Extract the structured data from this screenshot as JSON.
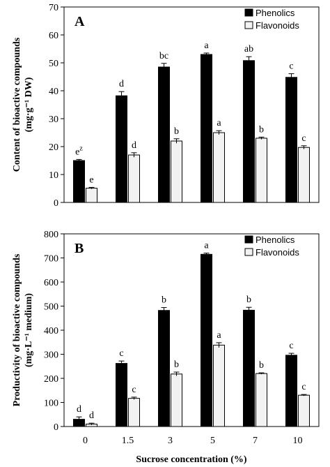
{
  "chart_data": [
    {
      "type": "bar",
      "panel_label": "A",
      "ylabel": "Content of bioactive compounds",
      "ylabel_units": "(mg·g⁻¹ DW)",
      "ylim": [
        0,
        70
      ],
      "yticks": [
        0,
        10,
        20,
        30,
        40,
        50,
        60,
        70
      ],
      "categories": [
        "0",
        "1.5",
        "3",
        "5",
        "7",
        "10"
      ],
      "legend_position": "top-right",
      "series": [
        {
          "name": "Phenolics",
          "color": "#000000",
          "values": [
            15,
            38.2,
            48.5,
            53,
            50.8,
            44.8
          ],
          "errors": [
            0.4,
            1.5,
            1.3,
            0.5,
            1.4,
            1.3
          ],
          "letters": [
            "e",
            "d",
            "bc",
            "a",
            "ab",
            "c"
          ]
        },
        {
          "name": "Flavonoids",
          "color": "#f2f2f2",
          "values": [
            5.1,
            17,
            22,
            25,
            23,
            19.7
          ],
          "errors": [
            0.3,
            0.8,
            0.8,
            0.7,
            0.4,
            0.6
          ],
          "letters": [
            "e",
            "d",
            "b",
            "a",
            "b",
            "c"
          ]
        }
      ],
      "annotations": [
        {
          "text": "e",
          "superscript": "z"
        }
      ]
    },
    {
      "type": "bar",
      "panel_label": "B",
      "ylabel": "Productivity of bioactive compounds",
      "ylabel_units": "(mg·L⁻¹ medium)",
      "xlabel": "Sucrose concentration (%)",
      "ylim": [
        0,
        800
      ],
      "yticks": [
        0,
        100,
        200,
        300,
        400,
        500,
        600,
        700,
        800
      ],
      "categories": [
        "0",
        "1.5",
        "3",
        "5",
        "7",
        "10"
      ],
      "legend_position": "top-right",
      "series": [
        {
          "name": "Phenolics",
          "color": "#000000",
          "values": [
            30,
            262,
            482,
            715,
            483,
            296
          ],
          "errors": [
            10,
            10,
            12,
            5,
            12,
            8
          ],
          "letters": [
            "d",
            "c",
            "b",
            "a",
            "b",
            "c"
          ]
        },
        {
          "name": "Flavonoids",
          "color": "#f2f2f2",
          "values": [
            10,
            117,
            218,
            338,
            220,
            130
          ],
          "errors": [
            4,
            5,
            8,
            10,
            3,
            3
          ],
          "letters": [
            "d",
            "c",
            "b",
            "a",
            "b",
            "c"
          ]
        }
      ]
    }
  ]
}
